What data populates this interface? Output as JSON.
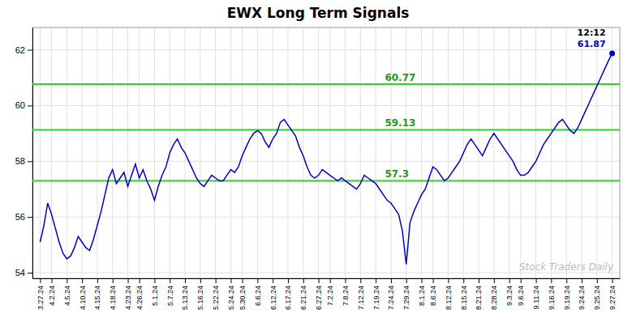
{
  "chart_data": {
    "type": "line",
    "title": "EWX Long Term Signals",
    "watermark": "Stock Traders Daily",
    "annotations": [
      {
        "text": "12:12"
      },
      {
        "text": "61.87"
      }
    ],
    "color": "#0000cc",
    "marker": "last",
    "grid": true,
    "hlines": {
      "values": [
        57.3,
        59.13,
        60.77
      ],
      "color": "#33cc33"
    },
    "ylim": [
      53.8,
      62.8
    ],
    "yticks": [
      54,
      56,
      58,
      60,
      62
    ],
    "categories": [
      "3.27.24",
      null,
      null,
      "4.2.24",
      null,
      null,
      null,
      "4.5.24",
      null,
      null,
      null,
      "4.10.24",
      null,
      null,
      null,
      "4.15.24",
      null,
      null,
      null,
      "4.18.24",
      null,
      null,
      null,
      "4.23.24",
      null,
      null,
      "4.26.24",
      null,
      null,
      null,
      "5.1.24",
      null,
      null,
      null,
      "5.7.24",
      null,
      null,
      null,
      "5.13.24",
      null,
      null,
      null,
      "5.16.24",
      null,
      null,
      null,
      "5.22.24",
      null,
      null,
      null,
      "5.24.24",
      null,
      null,
      "5.30.24",
      null,
      null,
      null,
      "6.6.24",
      null,
      null,
      null,
      "6.12.24",
      null,
      null,
      null,
      "6.17.24",
      null,
      null,
      null,
      "6.21.24",
      null,
      null,
      null,
      "6.27.24",
      null,
      null,
      "7.2.24",
      null,
      null,
      null,
      "7.8.24",
      null,
      null,
      null,
      "7.12.24",
      null,
      null,
      null,
      "7.19.24",
      null,
      null,
      null,
      "7.24.24",
      null,
      null,
      null,
      "7.29.24",
      null,
      null,
      null,
      "8.1.24",
      null,
      null,
      "8.6.24",
      null,
      null,
      null,
      "8.12.24",
      null,
      null,
      null,
      "8.15.24",
      null,
      null,
      null,
      "8.21.24",
      null,
      null,
      null,
      "8.28.24",
      null,
      null,
      null,
      "9.3.24",
      null,
      null,
      "9.6.24",
      null,
      null,
      null,
      "9.11.24",
      null,
      null,
      null,
      "9.16.24",
      null,
      null,
      null,
      "9.19.24",
      null,
      null,
      null,
      "9.24.24",
      null,
      null,
      null,
      "9.25.24",
      null,
      null,
      null,
      "9.27.24"
    ],
    "values": [
      55.1,
      55.7,
      56.5,
      56.1,
      55.6,
      55.1,
      54.7,
      54.5,
      54.6,
      54.9,
      55.3,
      55.1,
      54.9,
      54.8,
      55.2,
      55.7,
      56.2,
      56.8,
      57.4,
      57.7,
      57.2,
      57.4,
      57.6,
      57.1,
      57.5,
      57.9,
      57.4,
      57.7,
      57.3,
      57.0,
      56.6,
      57.1,
      57.5,
      57.8,
      58.3,
      58.6,
      58.8,
      58.5,
      58.3,
      58.0,
      57.7,
      57.4,
      57.2,
      57.1,
      57.3,
      57.5,
      57.4,
      57.3,
      57.3,
      57.5,
      57.7,
      57.6,
      57.8,
      58.2,
      58.5,
      58.8,
      59.0,
      59.1,
      59.0,
      58.7,
      58.5,
      58.8,
      59.0,
      59.4,
      59.5,
      59.3,
      59.1,
      58.9,
      58.5,
      58.2,
      57.8,
      57.5,
      57.4,
      57.5,
      57.7,
      57.6,
      57.5,
      57.4,
      57.3,
      57.4,
      57.3,
      57.2,
      57.1,
      57.0,
      57.2,
      57.5,
      57.4,
      57.3,
      57.2,
      57.0,
      56.8,
      56.6,
      56.5,
      56.3,
      56.1,
      55.5,
      54.3,
      55.8,
      56.2,
      56.5,
      56.8,
      57.0,
      57.4,
      57.8,
      57.7,
      57.5,
      57.3,
      57.4,
      57.6,
      57.8,
      58.0,
      58.3,
      58.6,
      58.8,
      58.6,
      58.4,
      58.2,
      58.5,
      58.8,
      59.0,
      58.8,
      58.6,
      58.4,
      58.2,
      58.0,
      57.7,
      57.5,
      57.5,
      57.6,
      57.8,
      58.0,
      58.3,
      58.6,
      58.8,
      59.0,
      59.2,
      59.4,
      59.5,
      59.3,
      59.1,
      59.0,
      59.2,
      59.5,
      59.8,
      60.1,
      60.4,
      60.7,
      61.0,
      61.3,
      61.6,
      61.87
    ]
  }
}
